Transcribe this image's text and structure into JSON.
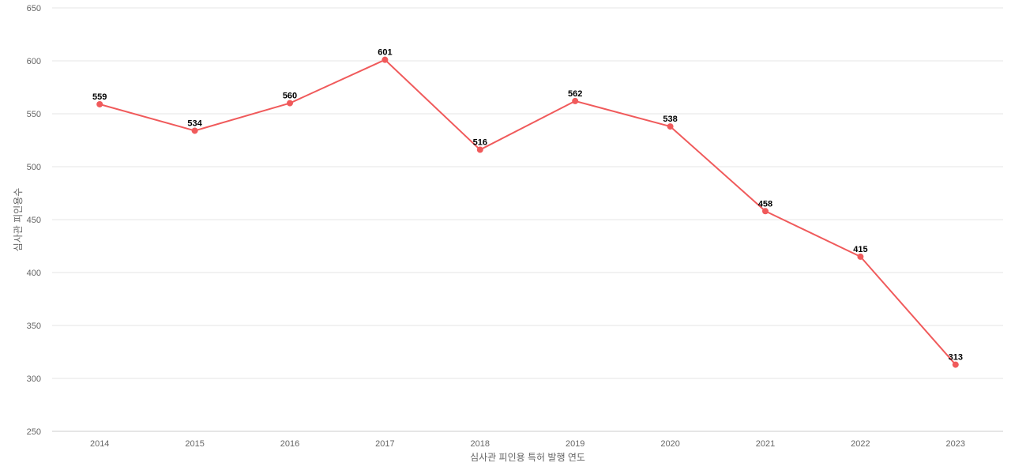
{
  "chart_data": {
    "type": "line",
    "title": "",
    "xlabel": "심사관 피인용 특허 발행 연도",
    "ylabel": "심사관 피인용수",
    "categories": [
      "2014",
      "2015",
      "2016",
      "2017",
      "2018",
      "2019",
      "2020",
      "2021",
      "2022",
      "2023"
    ],
    "series": [
      {
        "values": [
          559,
          534,
          560,
          601,
          516,
          562,
          538,
          458,
          415,
          313
        ],
        "color": "#f05a5b"
      }
    ],
    "ylim": [
      250,
      650
    ],
    "yticks": [
      250,
      300,
      350,
      400,
      450,
      500,
      550,
      600,
      650
    ],
    "grid": true,
    "legend": "none",
    "data_labels": true
  }
}
